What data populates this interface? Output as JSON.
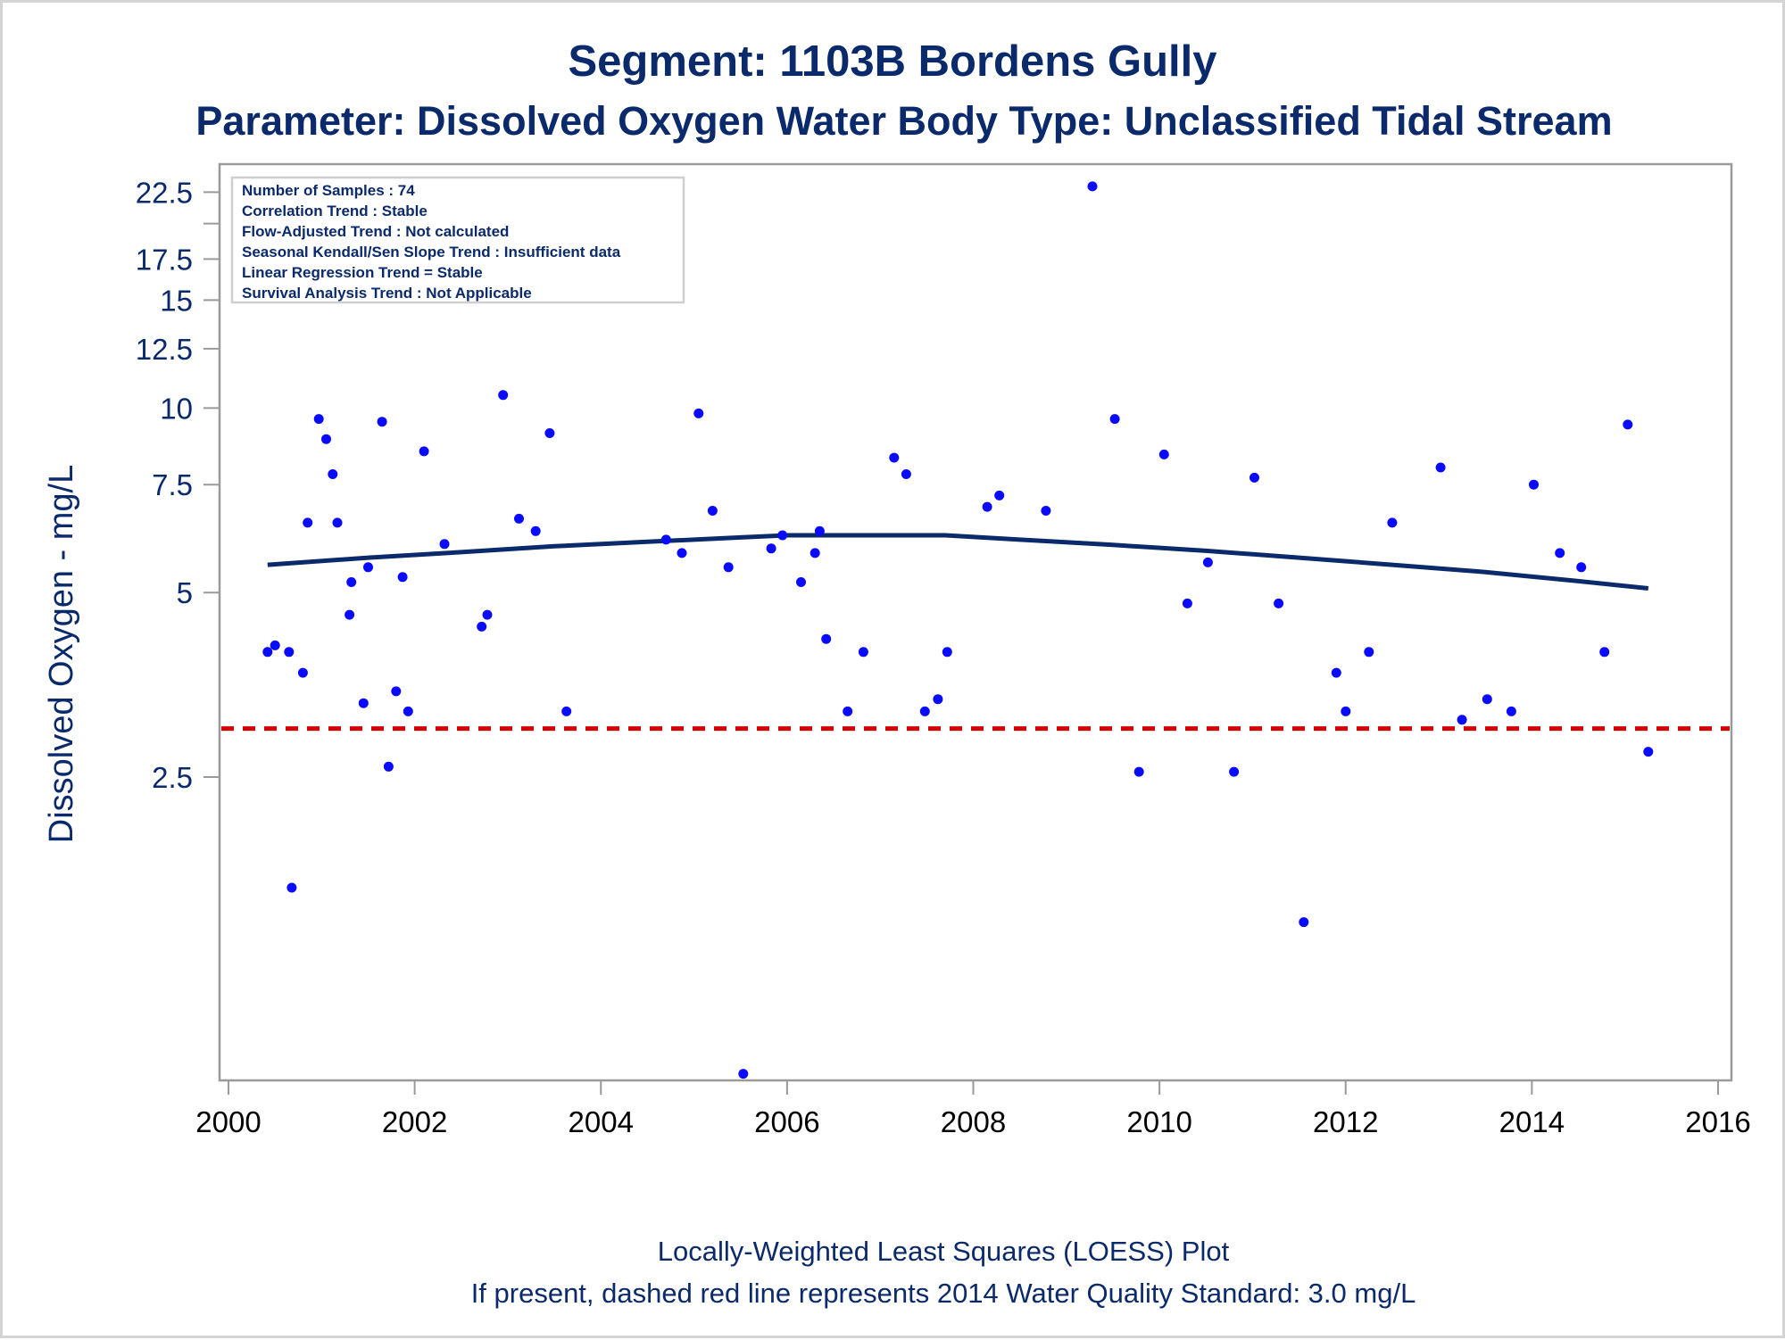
{
  "title_line1": "Segment: 1103B  Bordens Gully",
  "title_line2": "Parameter: Dissolved Oxygen   Water Body Type: Unclassified Tidal Stream",
  "info_box": [
    "Number of Samples : 74",
    "Correlation Trend : Stable",
    "Flow-Adjusted Trend : Not calculated",
    "Seasonal Kendall/Sen Slope Trend : Insufficient data",
    "Linear Regression Trend = Stable",
    "Survival Analysis Trend : Not Applicable"
  ],
  "footer_line1": "Locally-Weighted Least Squares (LOESS) Plot",
  "footer_line2": "If present, dashed red line represents 2014 Water Quality Standard: 3.0 mg/L",
  "colors": {
    "title": "#0b2a6b",
    "points": "#0a0aff",
    "loess": "#0b2a6b",
    "standard": "#d40000",
    "axis": "#9a9a9a",
    "tick_text": "#0b2a6b"
  },
  "chart_data": {
    "type": "scatter",
    "xlabel": "",
    "ylabel": "Dissolved Oxygen - mg/L",
    "y_scale": "log",
    "xlim": [
      2000,
      2016
    ],
    "ylim": [
      0.8,
      25
    ],
    "x_ticks": [
      2000,
      2002,
      2004,
      2006,
      2008,
      2010,
      2012,
      2014,
      2016
    ],
    "y_ticks": [
      2.5,
      5,
      7.5,
      10,
      12.5,
      15,
      17.5,
      22.5
    ],
    "y_tick_labels": [
      "2.5",
      "5",
      "7.5",
      "10",
      "12.5",
      "15",
      "17.5",
      "22.5"
    ],
    "y_minor_ticks": [
      20
    ],
    "grid": false,
    "legend": "none",
    "standard_line": {
      "y": 3.0,
      "style": "dashed"
    },
    "points": [
      [
        2000.42,
        4.0
      ],
      [
        2000.5,
        4.1
      ],
      [
        2000.65,
        4.0
      ],
      [
        2000.68,
        1.65
      ],
      [
        2000.8,
        3.7
      ],
      [
        2000.85,
        6.5
      ],
      [
        2000.97,
        9.6
      ],
      [
        2001.05,
        8.9
      ],
      [
        2001.12,
        7.8
      ],
      [
        2001.17,
        6.5
      ],
      [
        2001.3,
        4.6
      ],
      [
        2001.32,
        5.2
      ],
      [
        2001.45,
        3.3
      ],
      [
        2001.5,
        5.5
      ],
      [
        2001.65,
        9.5
      ],
      [
        2001.72,
        2.6
      ],
      [
        2001.8,
        3.45
      ],
      [
        2001.87,
        5.3
      ],
      [
        2001.93,
        3.2
      ],
      [
        2002.1,
        8.5
      ],
      [
        2002.32,
        6.0
      ],
      [
        2002.72,
        4.4
      ],
      [
        2002.78,
        4.6
      ],
      [
        2002.95,
        10.5
      ],
      [
        2003.12,
        6.6
      ],
      [
        2003.3,
        6.3
      ],
      [
        2003.45,
        9.1
      ],
      [
        2003.63,
        3.2
      ],
      [
        2004.7,
        6.1
      ],
      [
        2004.87,
        5.8
      ],
      [
        2005.05,
        9.8
      ],
      [
        2005.2,
        6.8
      ],
      [
        2005.37,
        5.5
      ],
      [
        2005.53,
        0.82
      ],
      [
        2005.83,
        5.9
      ],
      [
        2005.95,
        6.2
      ],
      [
        2006.15,
        5.2
      ],
      [
        2006.3,
        5.8
      ],
      [
        2006.35,
        6.3
      ],
      [
        2006.42,
        4.2
      ],
      [
        2006.65,
        3.2
      ],
      [
        2006.82,
        4.0
      ],
      [
        2007.15,
        8.3
      ],
      [
        2007.28,
        7.8
      ],
      [
        2007.48,
        3.2
      ],
      [
        2007.62,
        3.35
      ],
      [
        2007.72,
        4.0
      ],
      [
        2008.15,
        6.9
      ],
      [
        2008.28,
        7.2
      ],
      [
        2008.78,
        6.8
      ],
      [
        2009.28,
        23.0
      ],
      [
        2009.52,
        9.6
      ],
      [
        2009.78,
        2.55
      ],
      [
        2010.05,
        8.4
      ],
      [
        2010.3,
        4.8
      ],
      [
        2010.52,
        5.6
      ],
      [
        2010.8,
        2.55
      ],
      [
        2011.02,
        7.7
      ],
      [
        2011.28,
        4.8
      ],
      [
        2011.55,
        1.45
      ],
      [
        2011.9,
        3.7
      ],
      [
        2012.0,
        3.2
      ],
      [
        2012.25,
        4.0
      ],
      [
        2012.5,
        6.5
      ],
      [
        2013.02,
        8.0
      ],
      [
        2013.25,
        3.1
      ],
      [
        2013.52,
        3.35
      ],
      [
        2013.78,
        3.2
      ],
      [
        2014.02,
        7.5
      ],
      [
        2014.3,
        5.8
      ],
      [
        2014.53,
        5.5
      ],
      [
        2014.78,
        4.0
      ],
      [
        2015.03,
        9.4
      ],
      [
        2015.25,
        2.75
      ]
    ],
    "loess": [
      [
        2000.42,
        5.55
      ],
      [
        2001.5,
        5.7
      ],
      [
        2002.5,
        5.82
      ],
      [
        2003.5,
        5.95
      ],
      [
        2004.5,
        6.05
      ],
      [
        2005.5,
        6.15
      ],
      [
        2006.0,
        6.2
      ],
      [
        2007.0,
        6.2
      ],
      [
        2007.7,
        6.2
      ],
      [
        2008.5,
        6.1
      ],
      [
        2009.5,
        5.98
      ],
      [
        2010.5,
        5.85
      ],
      [
        2011.5,
        5.7
      ],
      [
        2012.5,
        5.55
      ],
      [
        2013.5,
        5.4
      ],
      [
        2014.5,
        5.22
      ],
      [
        2015.25,
        5.08
      ]
    ]
  }
}
